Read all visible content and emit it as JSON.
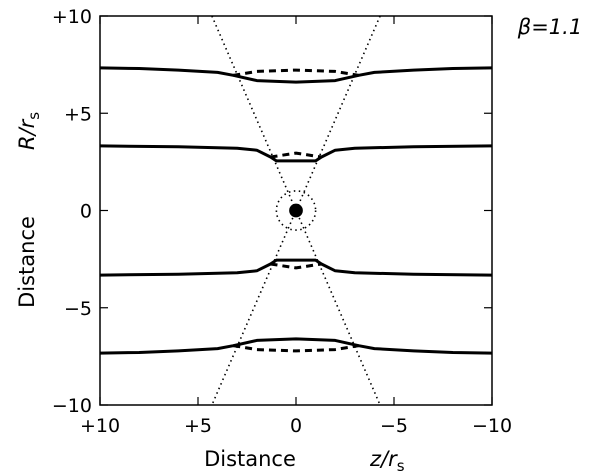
{
  "chart_data": {
    "type": "line",
    "annotation": "β=1.1",
    "x_label": "Distance",
    "x_symbol": {
      "main": "z/r",
      "sub": "s"
    },
    "y_label": "Distance",
    "y_symbol": {
      "main": "R/r",
      "sub": "s"
    },
    "xlim": [
      10,
      -10
    ],
    "ylim": [
      -10,
      10
    ],
    "xticks": [
      {
        "value": 10,
        "label": "+10"
      },
      {
        "value": 5,
        "label": "+5"
      },
      0,
      {
        "value": -5,
        "label": "−5"
      },
      {
        "value": -10,
        "label": "−10"
      }
    ],
    "yticks": [
      {
        "value": -10,
        "label": "−10"
      },
      {
        "value": -5,
        "label": "−5"
      },
      0,
      {
        "value": 5,
        "label": "+5"
      },
      {
        "value": 10,
        "label": "+10"
      }
    ],
    "series": [
      {
        "color": "#000000",
        "style": "solid",
        "x": [
          10,
          8,
          6,
          4,
          3.2,
          2,
          0,
          -2,
          -3.2,
          -4,
          -6,
          -8,
          -10
        ],
        "values": [
          7.33,
          7.3,
          7.22,
          7.1,
          6.95,
          6.68,
          6.6,
          6.68,
          6.95,
          7.1,
          7.22,
          7.3,
          7.33
        ]
      },
      {
        "color": "#000000",
        "style": "dashed",
        "x": [
          3.2,
          2,
          0,
          -2,
          -3.2
        ],
        "values": [
          6.95,
          7.15,
          7.22,
          7.15,
          6.95
        ]
      },
      {
        "color": "#000000",
        "style": "solid",
        "x": [
          10,
          6,
          3,
          2,
          1.3,
          1,
          0,
          -1,
          -1.3,
          -2,
          -3,
          -6,
          -10
        ],
        "values": [
          3.32,
          3.28,
          3.2,
          3.1,
          2.75,
          2.55,
          2.55,
          2.55,
          2.75,
          3.1,
          3.2,
          3.28,
          3.32
        ]
      },
      {
        "color": "#000000",
        "style": "dashed",
        "x": [
          1.3,
          0,
          -1.3
        ],
        "values": [
          2.75,
          2.95,
          2.75
        ]
      },
      {
        "color": "#000000",
        "style": "solid",
        "x": [
          10,
          6,
          3,
          2,
          1.3,
          1,
          0,
          -1,
          -1.3,
          -2,
          -3,
          -6,
          -10
        ],
        "values": [
          -3.32,
          -3.28,
          -3.2,
          -3.1,
          -2.75,
          -2.55,
          -2.55,
          -2.55,
          -2.75,
          -3.1,
          -3.2,
          -3.28,
          -3.32
        ]
      },
      {
        "color": "#000000",
        "style": "dashed",
        "x": [
          1.3,
          0,
          -1.3
        ],
        "values": [
          -2.75,
          -2.95,
          -2.75
        ]
      },
      {
        "color": "#000000",
        "style": "solid",
        "x": [
          10,
          8,
          6,
          4,
          3.2,
          2,
          0,
          -2,
          -3.2,
          -4,
          -6,
          -8,
          -10
        ],
        "values": [
          -7.33,
          -7.3,
          -7.22,
          -7.1,
          -6.95,
          -6.68,
          -6.6,
          -6.68,
          -6.95,
          -7.1,
          -7.22,
          -7.3,
          -7.33
        ]
      },
      {
        "color": "#000000",
        "style": "dashed",
        "x": [
          3.2,
          2,
          0,
          -2,
          -3.2
        ],
        "values": [
          -6.95,
          -7.15,
          -7.22,
          -7.15,
          -6.95
        ]
      },
      {
        "color": "#000000",
        "style": "dotted",
        "x": [
          4.29,
          -4.29
        ],
        "values": [
          10,
          -10
        ]
      },
      {
        "color": "#000000",
        "style": "dotted",
        "x": [
          -4.29,
          4.29
        ],
        "values": [
          10,
          -10
        ]
      }
    ],
    "circles": [
      {
        "x": 0,
        "y": 0,
        "radius": 1,
        "style": "dotted",
        "color": "#000000"
      },
      {
        "x": 0,
        "y": 0,
        "radius": 0.35,
        "style": "filled",
        "color": "#000000"
      }
    ]
  }
}
